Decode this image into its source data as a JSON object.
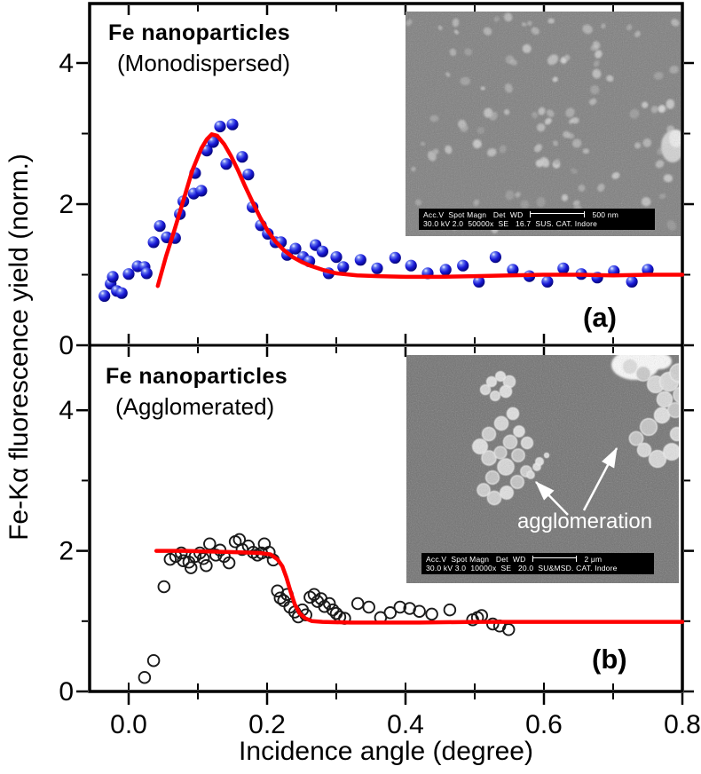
{
  "figure": {
    "x_axis": {
      "title": "Incidence angle (degree)",
      "tick_labels": [
        "0.0",
        "0.2",
        "0.4",
        "0.6",
        "0.8"
      ],
      "tick_values": [
        0,
        0.2,
        0.4,
        0.6,
        0.8
      ],
      "minor_tick_values": [
        0.1,
        0.3,
        0.5,
        0.7
      ]
    },
    "y_axis": {
      "title": "Fe-Kα fluorescence yield (norm.)",
      "tick_labels": [
        "0",
        "2",
        "4"
      ],
      "tick_values": [
        0,
        2,
        4
      ],
      "minor_tick_values": [
        1,
        3
      ]
    },
    "colors": {
      "curve": "#ff0000",
      "marker_a_fill": "#1c1ce0",
      "marker_b_stroke": "#1a1a1a",
      "axis": "#000000",
      "inset_a_bg": "#7d7d7d",
      "inset_b_bg": "#6f6f6f",
      "sem_caption_bg": "#000000",
      "sem_text": "#ffffff"
    }
  },
  "panels": {
    "a": {
      "title": "Fe nanoparticles",
      "subtitle": "(Monodispersed)",
      "letter": "(a)",
      "inset": {
        "caption_line1": "Acc.V  Spot Magn   Det  WD",
        "scale_label": "500 nm",
        "caption_line2": "30.0 kV 2.0  50000x  SE   16.7  SUS. CAT. Indore"
      }
    },
    "b": {
      "title": "Fe nanoparticles",
      "subtitle": "(Agglomerated)",
      "letter": "(b)",
      "inset": {
        "caption_line1": "Acc.V  Spot Magn   Det  WD",
        "scale_label": "2 μm",
        "caption_line2": "30.0 kV 3.0  10000x  SE   20.0  SU&MSD. CAT. Indore",
        "annotation": "agglomeration"
      }
    }
  },
  "chart_data": [
    {
      "type": "scatter",
      "panel": "a",
      "title": "Fe nanoparticles (Monodispersed)",
      "xlabel": "Incidence angle (degree)",
      "ylabel": "Fe-Kα fluorescence yield (norm.)",
      "xlim": [
        -0.06,
        0.8
      ],
      "ylim": [
        0,
        4.85
      ],
      "x_ticks": [
        0,
        0.2,
        0.4,
        0.6,
        0.8
      ],
      "y_ticks": [
        0,
        2,
        4
      ],
      "grid": false,
      "legend": "none",
      "series": [
        {
          "name": "measured yield",
          "style": "blue-sphere-markers",
          "x": [
            -0.035,
            -0.026,
            -0.023,
            -0.017,
            -0.01,
            0.0,
            0.013,
            0.023,
            0.026,
            0.036,
            0.045,
            0.055,
            0.067,
            0.074,
            0.079,
            0.094,
            0.096,
            0.105,
            0.113,
            0.122,
            0.132,
            0.141,
            0.15,
            0.164,
            0.173,
            0.179,
            0.191,
            0.201,
            0.212,
            0.22,
            0.229,
            0.241,
            0.252,
            0.261,
            0.27,
            0.28,
            0.289,
            0.3,
            0.31,
            0.335,
            0.359,
            0.385,
            0.408,
            0.432,
            0.458,
            0.483,
            0.506,
            0.53,
            0.555,
            0.579,
            0.605,
            0.628,
            0.654,
            0.677,
            0.701,
            0.727,
            0.75
          ],
          "y": [
            0.7,
            0.87,
            0.97,
            0.77,
            0.74,
            1.01,
            1.12,
            1.11,
            1.02,
            1.46,
            1.69,
            1.53,
            1.52,
            1.86,
            2.04,
            2.15,
            2.44,
            2.19,
            2.76,
            2.88,
            3.1,
            2.57,
            3.13,
            2.67,
            2.42,
            1.96,
            1.7,
            1.58,
            1.46,
            1.46,
            1.28,
            1.37,
            1.25,
            1.19,
            1.42,
            1.33,
            1.02,
            1.25,
            1.11,
            1.21,
            1.09,
            1.24,
            1.13,
            1.02,
            1.07,
            1.13,
            0.9,
            1.25,
            1.07,
            0.98,
            0.9,
            1.09,
            1.01,
            0.96,
            1.05,
            0.9,
            1.07
          ]
        },
        {
          "name": "fit",
          "style": "red-line",
          "x": [
            0.042,
            0.054,
            0.066,
            0.079,
            0.092,
            0.105,
            0.113,
            0.12,
            0.128,
            0.138,
            0.148,
            0.158,
            0.168,
            0.179,
            0.19,
            0.201,
            0.212,
            0.224,
            0.237,
            0.25,
            0.262,
            0.28,
            0.3,
            0.33,
            0.36,
            0.4,
            0.45,
            0.5,
            0.55,
            0.6,
            0.65,
            0.7,
            0.75,
            0.8
          ],
          "y": [
            0.84,
            1.26,
            1.63,
            2.05,
            2.48,
            2.79,
            2.92,
            2.99,
            2.97,
            2.85,
            2.68,
            2.48,
            2.26,
            2.03,
            1.81,
            1.62,
            1.47,
            1.35,
            1.25,
            1.18,
            1.13,
            1.07,
            1.02,
            0.99,
            0.98,
            0.97,
            0.97,
            0.98,
            0.99,
            1.0,
            1.0,
            0.99,
            1.0,
            1.0
          ]
        }
      ]
    },
    {
      "type": "scatter",
      "panel": "b",
      "title": "Fe nanoparticles (Agglomerated)",
      "xlabel": "Incidence angle (degree)",
      "ylabel": "Fe-Kα fluorescence yield (norm.)",
      "xlim": [
        -0.06,
        0.8
      ],
      "ylim": [
        0,
        4.92
      ],
      "x_ticks": [
        0,
        0.2,
        0.4,
        0.6,
        0.8
      ],
      "y_ticks": [
        0,
        2,
        4
      ],
      "grid": false,
      "legend": "none",
      "series": [
        {
          "name": "measured yield",
          "style": "open-circle-markers",
          "x": [
            0.023,
            0.036,
            0.051,
            0.06,
            0.068,
            0.076,
            0.079,
            0.087,
            0.09,
            0.096,
            0.103,
            0.108,
            0.112,
            0.117,
            0.126,
            0.132,
            0.138,
            0.145,
            0.154,
            0.16,
            0.164,
            0.173,
            0.18,
            0.186,
            0.192,
            0.196,
            0.203,
            0.209,
            0.215,
            0.219,
            0.224,
            0.229,
            0.233,
            0.24,
            0.245,
            0.251,
            0.256,
            0.262,
            0.268,
            0.273,
            0.278,
            0.283,
            0.29,
            0.295,
            0.3,
            0.305,
            0.312,
            0.331,
            0.347,
            0.364,
            0.378,
            0.392,
            0.406,
            0.42,
            0.438,
            0.464,
            0.497,
            0.504,
            0.51,
            0.526,
            0.536,
            0.549
          ],
          "y": [
            0.2,
            0.44,
            1.49,
            1.88,
            1.92,
            1.97,
            1.86,
            1.84,
            1.76,
            1.92,
            1.97,
            1.89,
            1.79,
            2.1,
            1.94,
            2.01,
            1.92,
            1.83,
            2.13,
            2.16,
            2.02,
            2.07,
            1.98,
            1.94,
            1.97,
            2.1,
            1.98,
            1.87,
            1.43,
            1.33,
            1.29,
            1.38,
            1.2,
            1.13,
            1.06,
            1.16,
            1.09,
            1.34,
            1.38,
            1.28,
            1.32,
            1.21,
            1.25,
            1.16,
            1.11,
            1.06,
            1.04,
            1.25,
            1.2,
            1.05,
            1.12,
            1.2,
            1.18,
            1.14,
            1.1,
            1.16,
            1.02,
            1.05,
            1.08,
            0.96,
            0.93,
            0.88
          ]
        },
        {
          "name": "fit",
          "style": "red-line",
          "x": [
            0.04,
            0.08,
            0.12,
            0.16,
            0.19,
            0.205,
            0.215,
            0.222,
            0.228,
            0.234,
            0.24,
            0.247,
            0.255,
            0.265,
            0.28,
            0.32,
            0.36,
            0.42,
            0.5,
            0.6,
            0.7,
            0.8
          ],
          "y": [
            2.0,
            2.0,
            1.99,
            1.98,
            1.97,
            1.95,
            1.88,
            1.78,
            1.62,
            1.42,
            1.24,
            1.11,
            1.04,
            1.0,
            0.99,
            0.98,
            0.98,
            0.98,
            0.99,
            0.99,
            0.99,
            0.99
          ]
        }
      ]
    }
  ]
}
